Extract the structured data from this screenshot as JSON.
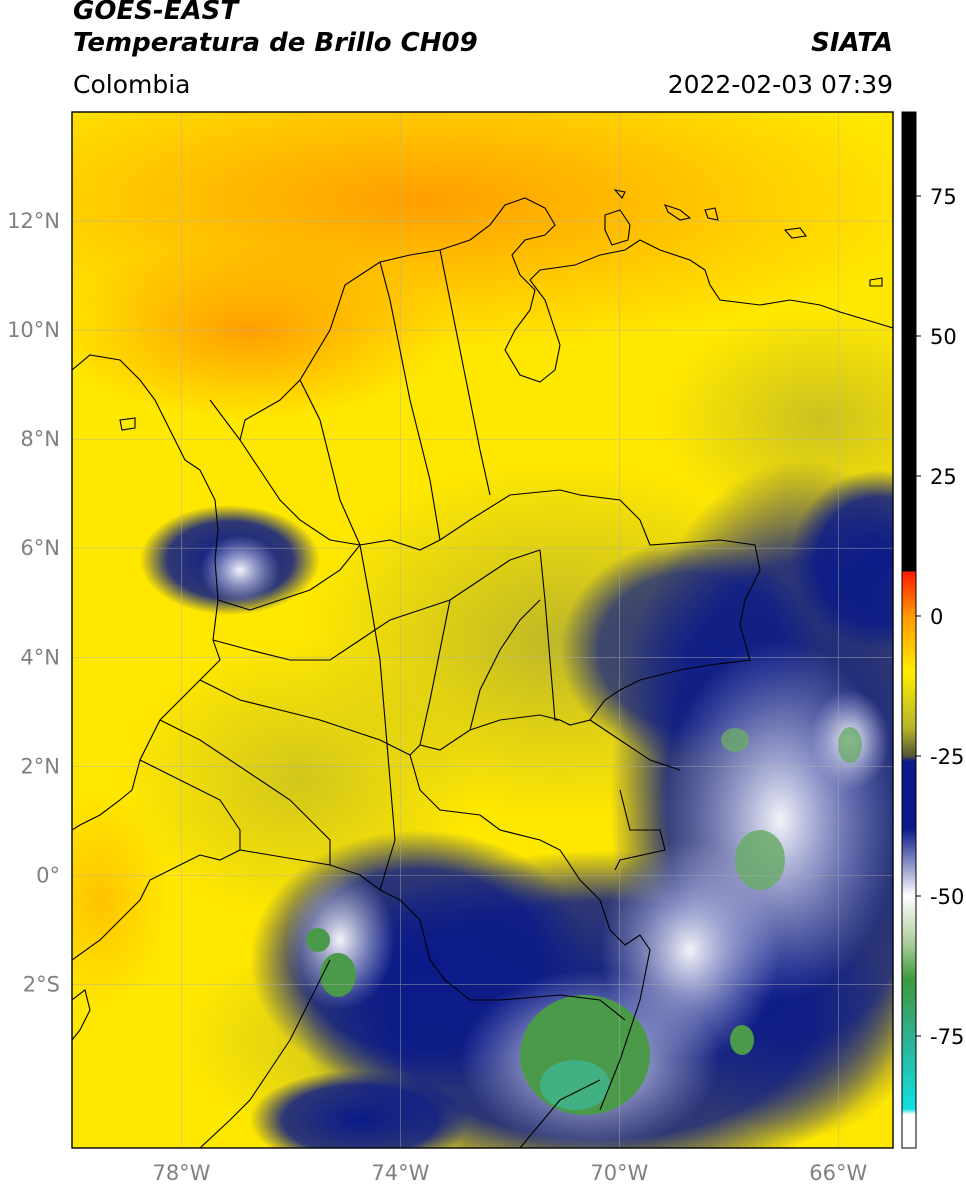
{
  "header": {
    "satellite": "GOES-EAST",
    "product": "Temperatura de Brillo CH09",
    "institution": "SIATA",
    "region": "Colombia",
    "datetime": "2022-02-03 07:39"
  },
  "map": {
    "lon_range": [
      -80,
      -65
    ],
    "lat_range": [
      -5,
      14
    ],
    "lat_labels": [
      "12°N",
      "10°N",
      "8°N",
      "6°N",
      "4°N",
      "2°N",
      "0°",
      "2°S"
    ],
    "lat_values": [
      12,
      10,
      8,
      6,
      4,
      2,
      0,
      -2
    ],
    "lon_labels": [
      "78°W",
      "74°W",
      "70°W",
      "66°W"
    ],
    "lon_values": [
      -78,
      -74,
      -70,
      -66
    ]
  },
  "colorbar": {
    "range": [
      -95,
      90
    ],
    "tick_labels": [
      "75",
      "50",
      "25",
      "0",
      "-25",
      "-50",
      "-75"
    ],
    "tick_values": [
      75,
      50,
      25,
      0,
      -25,
      -50,
      -75
    ],
    "colors": {
      "black": "#000000",
      "red": "#ff1a00",
      "orange": "#ff9900",
      "yellow": "#ffee00",
      "olive": "#b5b52a",
      "navy": "#0b1a88",
      "white": "#ffffff",
      "green": "#3c9a3c",
      "cyan": "#10e0e0"
    }
  }
}
